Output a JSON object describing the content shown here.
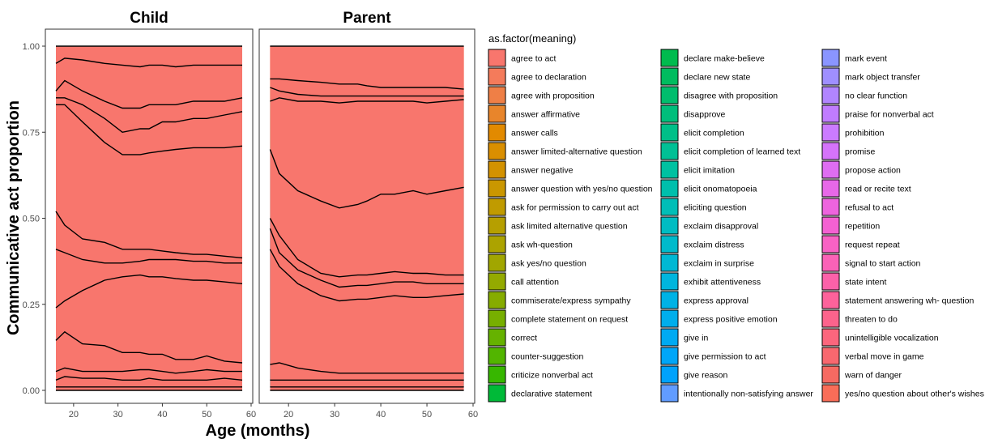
{
  "chart_data": {
    "type": "area",
    "stacked": true,
    "normalized": true,
    "facets": [
      "Child",
      "Parent"
    ],
    "xlabel": "Age (months)",
    "ylabel": "Communicative act proportion",
    "xlim": [
      14,
      60
    ],
    "ylim": [
      0,
      1
    ],
    "xticks": [
      20,
      30,
      40,
      50,
      60
    ],
    "yticks": [
      0,
      0.25,
      0.5,
      0.75,
      1
    ],
    "ytick_labels": [
      "0.00",
      "0.25",
      "0.50",
      "0.75",
      "1.00"
    ],
    "grid": false,
    "legend": {
      "title": "as.factor(meaning)",
      "position": "right",
      "columns": 3
    },
    "x": [
      16,
      18,
      22,
      27,
      31,
      35,
      37,
      40,
      43,
      47,
      50,
      54,
      58
    ],
    "categories": [
      "agree to act",
      "agree to declaration",
      "agree with proposition",
      "answer affirmative",
      "answer calls",
      "answer limited-alternative question",
      "answer negative",
      "answer question with yes/no question",
      "ask for permission to carry out act",
      "ask limited alternative question",
      "ask wh-question",
      "ask yes/no question",
      "call attention",
      "commiserate/express sympathy",
      "complete statement on request",
      "correct",
      "counter-suggestion",
      "criticize nonverbal act",
      "declarative statement",
      "declare make-believe",
      "declare new state",
      "disagree with proposition",
      "disapprove",
      "elicit completion",
      "elicit completion of learned text",
      "elicit imitation",
      "elicit onomatopoeia",
      "eliciting question",
      "exclaim disapproval",
      "exclaim distress",
      "exclaim in surprise",
      "exhibit attentiveness",
      "express approval",
      "express positive emotion",
      "give in",
      "give permission to act",
      "give reason",
      "intentionally non-satisfying answer",
      "mark event",
      "mark object transfer",
      "no clear function",
      "praise for nonverbal act",
      "prohibition",
      "promise",
      "propose action",
      "read or recite text",
      "refusal to act",
      "repetition",
      "request repeat",
      "signal to start action",
      "state intent",
      "statement answering wh- question",
      "threaten to do",
      "unintelligible vocalization",
      "verbal move in game",
      "warn of danger",
      "yes/no question about other's wishes"
    ],
    "colors": [
      "#F8766D",
      "#F47B5B",
      "#EF7F46",
      "#E8852B",
      "#E28A00",
      "#DA8F00",
      "#D39200",
      "#CA9700",
      "#C09B00",
      "#B69F00",
      "#ACA300",
      "#A1A600",
      "#94AA00",
      "#86AC00",
      "#77AF00",
      "#66B200",
      "#52B500",
      "#37B700",
      "#00BA38",
      "#00BB4E",
      "#00BC5F",
      "#00BD6D",
      "#00BE7B",
      "#00BF88",
      "#00C095",
      "#00C1A1",
      "#00BFAC",
      "#00BEB7",
      "#00BCC2",
      "#00BACB",
      "#00B8D4",
      "#00B5DD",
      "#00B2E5",
      "#00AEEC",
      "#00AAF2",
      "#00A6F8",
      "#00A2FC",
      "#619CFF",
      "#8A95FF",
      "#9F8FFF",
      "#B185FF",
      "#C07CFF",
      "#CB7BFF",
      "#D573FA",
      "#DE6DF2",
      "#E768E8",
      "#EE64DE",
      "#F461D2",
      "#F862C4",
      "#FA62B7",
      "#FC61A9",
      "#FD629B",
      "#FC638C",
      "#FC667D",
      "#F8686F",
      "#F66A62",
      "#F96D58"
    ],
    "series": [
      {
        "facet": "Child",
        "cumulative_top": {
          "26": [
            0.01,
            0.01,
            0.01,
            0.01,
            0.01,
            0.01,
            0.01,
            0.01,
            0.01,
            0.01,
            0.01,
            0.01,
            0.01
          ],
          "49": [
            0.03,
            0.04,
            0.035,
            0.035,
            0.03,
            0.03,
            0.035,
            0.03,
            0.03,
            0.03,
            0.03,
            0.035,
            0.03
          ],
          "50": [
            0.055,
            0.065,
            0.055,
            0.055,
            0.055,
            0.06,
            0.06,
            0.055,
            0.05,
            0.055,
            0.06,
            0.055,
            0.055
          ],
          "51": [
            0.145,
            0.17,
            0.135,
            0.13,
            0.11,
            0.11,
            0.105,
            0.105,
            0.09,
            0.09,
            0.1,
            0.085,
            0.08
          ],
          "44": [
            0.24,
            0.26,
            0.29,
            0.32,
            0.33,
            0.335,
            0.33,
            0.33,
            0.325,
            0.32,
            0.32,
            0.315,
            0.31
          ],
          "40": [
            0.41,
            0.4,
            0.38,
            0.37,
            0.37,
            0.375,
            0.38,
            0.38,
            0.38,
            0.375,
            0.375,
            0.37,
            0.37
          ],
          "37": [
            0.52,
            0.48,
            0.44,
            0.43,
            0.41,
            0.41,
            0.41,
            0.405,
            0.4,
            0.395,
            0.395,
            0.39,
            0.385
          ],
          "18": [
            0.83,
            0.83,
            0.78,
            0.72,
            0.685,
            0.685,
            0.69,
            0.695,
            0.7,
            0.705,
            0.705,
            0.705,
            0.71
          ],
          "10": [
            0.85,
            0.85,
            0.83,
            0.79,
            0.75,
            0.76,
            0.76,
            0.78,
            0.78,
            0.79,
            0.79,
            0.8,
            0.81
          ],
          "6": [
            0.87,
            0.9,
            0.87,
            0.84,
            0.82,
            0.82,
            0.83,
            0.83,
            0.83,
            0.84,
            0.84,
            0.84,
            0.85
          ],
          "2": [
            0.95,
            0.965,
            0.96,
            0.95,
            0.945,
            0.94,
            0.945,
            0.945,
            0.94,
            0.945,
            0.945,
            0.945,
            0.945
          ],
          "0": [
            1,
            1,
            1,
            1,
            1,
            1,
            1,
            1,
            1,
            1,
            1,
            1,
            1
          ]
        }
      },
      {
        "facet": "Parent",
        "cumulative_top": {
          "26": [
            0.01,
            0.01,
            0.01,
            0.01,
            0.01,
            0.01,
            0.01,
            0.01,
            0.01,
            0.01,
            0.01,
            0.01,
            0.01
          ],
          "51": [
            0.03,
            0.03,
            0.03,
            0.03,
            0.03,
            0.03,
            0.03,
            0.03,
            0.03,
            0.03,
            0.03,
            0.03,
            0.03
          ],
          "49": [
            0.075,
            0.08,
            0.065,
            0.055,
            0.05,
            0.05,
            0.05,
            0.05,
            0.05,
            0.05,
            0.05,
            0.05,
            0.05
          ],
          "44": [
            0.41,
            0.36,
            0.31,
            0.275,
            0.26,
            0.265,
            0.265,
            0.27,
            0.275,
            0.27,
            0.27,
            0.275,
            0.28
          ],
          "37": [
            0.47,
            0.4,
            0.35,
            0.32,
            0.3,
            0.305,
            0.305,
            0.31,
            0.315,
            0.315,
            0.31,
            0.31,
            0.31
          ],
          "32": [
            0.5,
            0.45,
            0.38,
            0.34,
            0.33,
            0.335,
            0.335,
            0.34,
            0.345,
            0.34,
            0.34,
            0.335,
            0.335
          ],
          "18": [
            0.7,
            0.63,
            0.58,
            0.55,
            0.53,
            0.54,
            0.55,
            0.57,
            0.57,
            0.58,
            0.57,
            0.58,
            0.59
          ],
          "12": [
            0.84,
            0.85,
            0.84,
            0.84,
            0.835,
            0.84,
            0.84,
            0.84,
            0.84,
            0.84,
            0.835,
            0.84,
            0.845
          ],
          "6": [
            0.88,
            0.87,
            0.86,
            0.855,
            0.855,
            0.855,
            0.855,
            0.855,
            0.855,
            0.855,
            0.855,
            0.855,
            0.855
          ],
          "2": [
            0.905,
            0.905,
            0.9,
            0.895,
            0.89,
            0.89,
            0.885,
            0.88,
            0.88,
            0.88,
            0.88,
            0.88,
            0.875
          ],
          "0": [
            1,
            1,
            1,
            1,
            1,
            1,
            1,
            1,
            1,
            1,
            1,
            1,
            1
          ]
        }
      }
    ]
  }
}
